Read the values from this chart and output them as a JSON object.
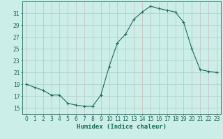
{
  "x": [
    0,
    1,
    2,
    3,
    4,
    5,
    6,
    7,
    8,
    9,
    10,
    11,
    12,
    13,
    14,
    15,
    16,
    17,
    18,
    19,
    20,
    21,
    22,
    23
  ],
  "y": [
    19.0,
    18.5,
    18.0,
    17.2,
    17.2,
    15.8,
    15.5,
    15.3,
    15.3,
    17.2,
    22.0,
    26.0,
    27.5,
    30.0,
    31.2,
    32.2,
    31.8,
    31.5,
    31.2,
    29.5,
    25.0,
    21.5,
    21.2,
    21.0
  ],
  "line_color": "#1a6b5a",
  "marker": "+",
  "marker_size": 3,
  "bg_color": "#cceee8",
  "hgrid_color": "#aacccc",
  "vgrid_color": "#ccbbbb",
  "xlabel": "Humidex (Indice chaleur)",
  "xlim": [
    -0.5,
    23.5
  ],
  "ylim": [
    14,
    33
  ],
  "yticks": [
    15,
    17,
    19,
    21,
    23,
    25,
    27,
    29,
    31
  ],
  "xticks": [
    0,
    1,
    2,
    3,
    4,
    5,
    6,
    7,
    8,
    9,
    10,
    11,
    12,
    13,
    14,
    15,
    16,
    17,
    18,
    19,
    20,
    21,
    22,
    23
  ],
  "axis_fontsize": 5.5,
  "label_fontsize": 6.5
}
